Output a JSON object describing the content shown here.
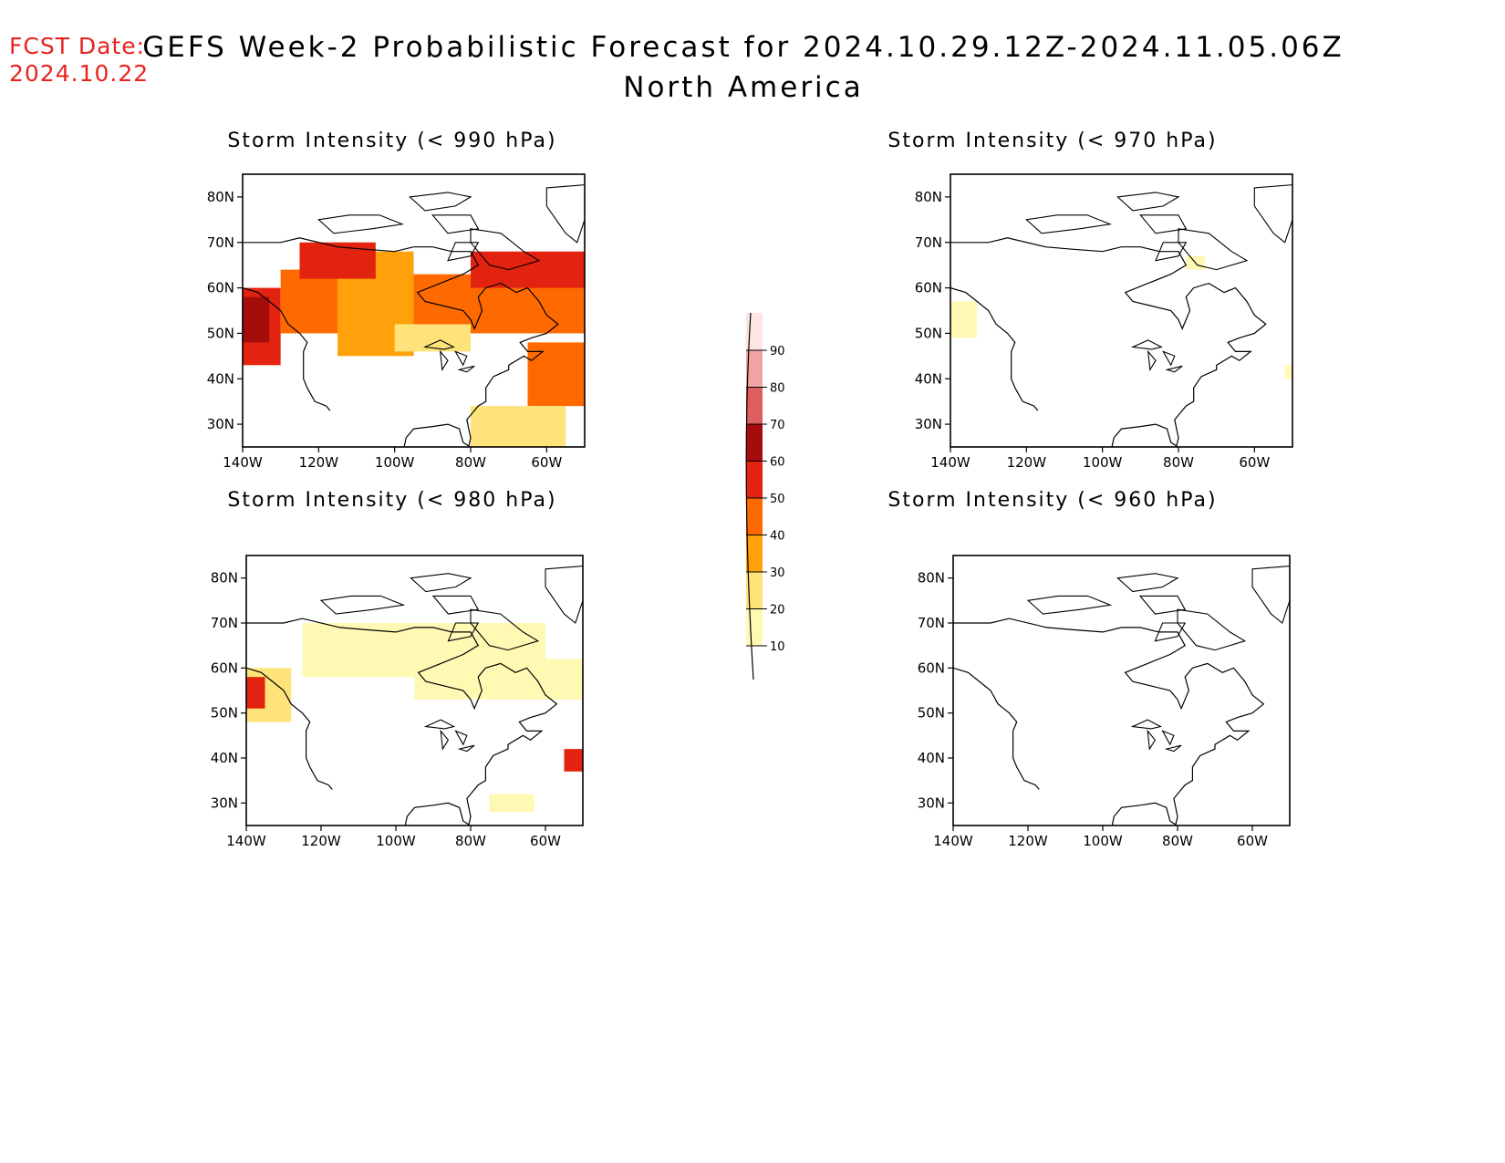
{
  "header": {
    "fcst_label": "FCST Date:",
    "fcst_date": "2024.10.22",
    "title_line1": "GEFS Week-2 Probabilistic Forecast for 2024.10.29.12Z-2024.11.05.06Z",
    "title_line2": "North America"
  },
  "axes": {
    "lat_labels": [
      "30N",
      "40N",
      "50N",
      "60N",
      "70N",
      "80N"
    ],
    "lon_labels": [
      "140W",
      "120W",
      "100W",
      "80W",
      "60W"
    ]
  },
  "panels": [
    {
      "id": "p990",
      "title": "Storm Intensity (< 990 hPa)"
    },
    {
      "id": "p970",
      "title": "Storm Intensity (< 970 hPa)"
    },
    {
      "id": "p980",
      "title": "Storm Intensity (< 980 hPa)"
    },
    {
      "id": "p960",
      "title": "Storm Intensity (< 960 hPa)"
    }
  ],
  "colorbar": {
    "levels": [
      "10",
      "20",
      "30",
      "40",
      "50",
      "60",
      "70",
      "80",
      "90"
    ],
    "colors": [
      "#fff9b3",
      "#fde37a",
      "#ffa10a",
      "#ff6a00",
      "#e2230f",
      "#a50c0c",
      "#dd5f5f",
      "#f1a4a4",
      "#fde5e5"
    ]
  },
  "probability_areas": {
    "p990": [
      {
        "level": 50,
        "lon": [
          -140,
          -130
        ],
        "lat": [
          43,
          60
        ],
        "color": "#e2230f"
      },
      {
        "level": 60,
        "lon": [
          -140,
          -133
        ],
        "lat": [
          48,
          58
        ],
        "color": "#a50c0c"
      },
      {
        "level": 40,
        "lon": [
          -130,
          -110
        ],
        "lat": [
          50,
          64
        ],
        "color": "#ff6a00"
      },
      {
        "level": 30,
        "lon": [
          -115,
          -95
        ],
        "lat": [
          45,
          68
        ],
        "color": "#ffa10a"
      },
      {
        "level": 50,
        "lon": [
          -125,
          -105
        ],
        "lat": [
          62,
          70
        ],
        "color": "#e2230f"
      },
      {
        "level": 40,
        "lon": [
          -95,
          -50
        ],
        "lat": [
          50,
          63
        ],
        "color": "#ff6a00"
      },
      {
        "level": 50,
        "lon": [
          -80,
          -50
        ],
        "lat": [
          60,
          68
        ],
        "color": "#e2230f"
      },
      {
        "level": 20,
        "lon": [
          -100,
          -80
        ],
        "lat": [
          46,
          52
        ],
        "color": "#fde37a"
      },
      {
        "level": 40,
        "lon": [
          -65,
          -50
        ],
        "lat": [
          34,
          48
        ],
        "color": "#ff6a00"
      },
      {
        "level": 20,
        "lon": [
          -80,
          -55
        ],
        "lat": [
          25,
          34
        ],
        "color": "#fde37a"
      }
    ],
    "p980": [
      {
        "level": 20,
        "lon": [
          -140,
          -128
        ],
        "lat": [
          48,
          60
        ],
        "color": "#fde37a"
      },
      {
        "level": 50,
        "lon": [
          -140,
          -135
        ],
        "lat": [
          51,
          58
        ],
        "color": "#e2230f"
      },
      {
        "level": 10,
        "lon": [
          -125,
          -60
        ],
        "lat": [
          58,
          70
        ],
        "color": "#fff9b3"
      },
      {
        "level": 10,
        "lon": [
          -95,
          -50
        ],
        "lat": [
          53,
          62
        ],
        "color": "#fff9b3"
      },
      {
        "level": 50,
        "lon": [
          -55,
          -50
        ],
        "lat": [
          37,
          42
        ],
        "color": "#e2230f"
      },
      {
        "level": 10,
        "lon": [
          -75,
          -63
        ],
        "lat": [
          28,
          32
        ],
        "color": "#fff9b3"
      }
    ],
    "p970": [
      {
        "level": 10,
        "lon": [
          -140,
          -133
        ],
        "lat": [
          49,
          57
        ],
        "color": "#fff9b3"
      },
      {
        "level": 10,
        "lon": [
          -78,
          -73
        ],
        "lat": [
          64,
          67
        ],
        "color": "#fff9b3"
      },
      {
        "level": 10,
        "lon": [
          -52,
          -50
        ],
        "lat": [
          40,
          43
        ],
        "color": "#fff9b3"
      }
    ],
    "p960": []
  }
}
